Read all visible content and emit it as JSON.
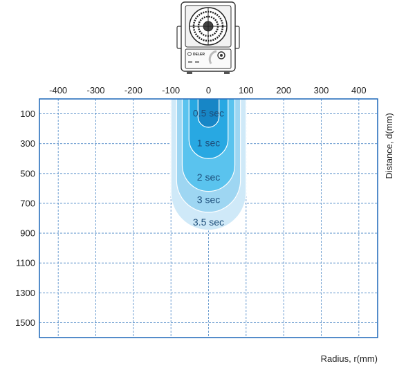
{
  "chart_data": {
    "type": "area",
    "title": "",
    "xlabel": "Radius, r(mm)",
    "ylabel": "Distance, d(mm)",
    "x_ticks": [
      -400,
      -300,
      -200,
      -100,
      0,
      100,
      200,
      300,
      400
    ],
    "y_ticks": [
      100,
      300,
      500,
      700,
      900,
      1100,
      1300,
      1500
    ],
    "xlim": [
      -450,
      450
    ],
    "ylim": [
      0,
      1600
    ],
    "y_inverted": true,
    "x_axis_position": "top",
    "y_axis_label_position": "right",
    "grid": true,
    "series": [
      {
        "name": "3.5 sec",
        "half_width": 100,
        "depth": 880,
        "color": "#cfe9f8"
      },
      {
        "name": "3 sec",
        "half_width": 85,
        "depth": 760,
        "color": "#9ed6f2"
      },
      {
        "name": "2 sec",
        "half_width": 70,
        "depth": 620,
        "color": "#5ac3ee"
      },
      {
        "name": "1 sec",
        "half_width": 52,
        "depth": 400,
        "color": "#28a8e2"
      },
      {
        "name": "0.5 sec",
        "half_width": 28,
        "depth": 190,
        "color": "#1786c6"
      }
    ],
    "labels": [
      {
        "text": "0.5 sec",
        "y": 95
      },
      {
        "text": "1 sec",
        "y": 295
      },
      {
        "text": "2 sec",
        "y": 525
      },
      {
        "text": "3 sec",
        "y": 675
      },
      {
        "text": "3.5 sec",
        "y": 825
      }
    ]
  },
  "device": {
    "brand": "DELER"
  }
}
